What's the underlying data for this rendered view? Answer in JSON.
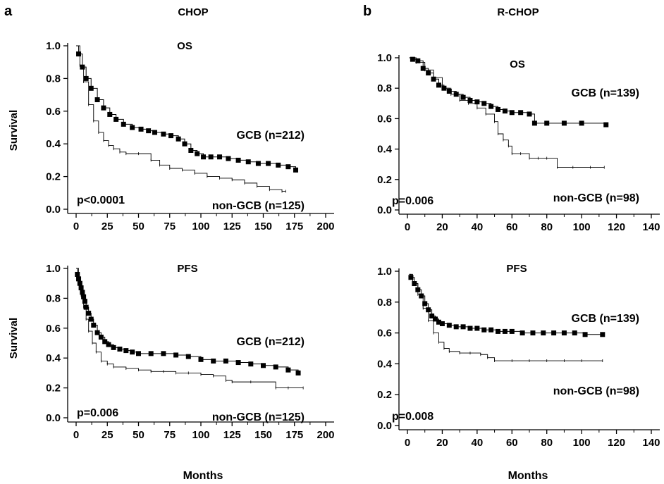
{
  "panels": [
    {
      "letter": "a",
      "title": "CHOP"
    },
    {
      "letter": "b",
      "title": "R-CHOP"
    }
  ],
  "shared_ylabel": "Survival",
  "shared_xlabel": "Months",
  "chart_data": [
    {
      "type": "line",
      "subtitle": "OS",
      "pvalue": "p<0.0001",
      "xlim": [
        0,
        200
      ],
      "ylim": [
        0,
        1
      ],
      "xticks": [
        "0",
        "25",
        "50",
        "75",
        "100",
        "125",
        "150",
        "175",
        "200"
      ],
      "yticks": [
        "0.0",
        "0.2",
        "0.4",
        "0.6",
        "0.8",
        "1.0"
      ],
      "series": [
        {
          "name": "GCB (n=212)",
          "marker": "square",
          "x": [
            0,
            2,
            5,
            8,
            12,
            17,
            22,
            27,
            32,
            38,
            45,
            52,
            58,
            63,
            70,
            76,
            82,
            87,
            92,
            97,
            102,
            108,
            115,
            122,
            130,
            138,
            146,
            154,
            162,
            170,
            176
          ],
          "y": [
            1.0,
            0.95,
            0.87,
            0.8,
            0.74,
            0.67,
            0.62,
            0.58,
            0.55,
            0.52,
            0.5,
            0.49,
            0.48,
            0.47,
            0.46,
            0.45,
            0.43,
            0.4,
            0.36,
            0.34,
            0.32,
            0.32,
            0.32,
            0.31,
            0.3,
            0.29,
            0.28,
            0.28,
            0.27,
            0.26,
            0.24
          ]
        },
        {
          "name": "non-GCB (n=125)",
          "marker": "none",
          "x": [
            0,
            3,
            6,
            10,
            14,
            18,
            22,
            26,
            30,
            35,
            40,
            50,
            60,
            67,
            75,
            85,
            95,
            105,
            115,
            125,
            135,
            145,
            155,
            165,
            168
          ],
          "y": [
            1.0,
            0.88,
            0.78,
            0.64,
            0.54,
            0.47,
            0.42,
            0.39,
            0.37,
            0.35,
            0.34,
            0.34,
            0.3,
            0.27,
            0.25,
            0.24,
            0.22,
            0.2,
            0.19,
            0.18,
            0.16,
            0.14,
            0.12,
            0.11,
            0.11
          ]
        }
      ]
    },
    {
      "type": "line",
      "subtitle": "OS",
      "pvalue": "p=0.006",
      "xlim": [
        0,
        140
      ],
      "ylim": [
        0,
        1
      ],
      "xticks": [
        "0",
        "20",
        "40",
        "60",
        "80",
        "100",
        "120",
        "140"
      ],
      "yticks": [
        "0.0",
        "0.2",
        "0.4",
        "0.6",
        "0.8",
        "1.0"
      ],
      "series": [
        {
          "name": "GCB (n=139)",
          "marker": "square",
          "x": [
            1,
            3,
            6,
            9,
            12,
            15,
            18,
            21,
            24,
            28,
            32,
            36,
            40,
            44,
            48,
            52,
            56,
            60,
            65,
            70,
            73,
            80,
            90,
            100,
            114
          ],
          "y": [
            1.0,
            0.99,
            0.98,
            0.93,
            0.9,
            0.86,
            0.82,
            0.8,
            0.78,
            0.76,
            0.74,
            0.72,
            0.71,
            0.7,
            0.68,
            0.66,
            0.65,
            0.64,
            0.64,
            0.63,
            0.57,
            0.57,
            0.57,
            0.57,
            0.56
          ]
        },
        {
          "name": "non-GCB (n=98)",
          "marker": "none",
          "x": [
            1,
            5,
            10,
            15,
            20,
            25,
            30,
            35,
            40,
            45,
            50,
            52,
            55,
            58,
            60,
            65,
            70,
            75,
            80,
            86,
            95,
            105,
            113
          ],
          "y": [
            1.0,
            0.97,
            0.92,
            0.87,
            0.8,
            0.76,
            0.72,
            0.7,
            0.67,
            0.63,
            0.58,
            0.5,
            0.46,
            0.42,
            0.37,
            0.37,
            0.34,
            0.34,
            0.34,
            0.28,
            0.28,
            0.28,
            0.28
          ]
        }
      ]
    },
    {
      "type": "line",
      "subtitle": "PFS",
      "pvalue": "p=0.006",
      "xlim": [
        0,
        200
      ],
      "ylim": [
        0,
        1
      ],
      "xticks": [
        "0",
        "25",
        "50",
        "75",
        "100",
        "125",
        "150",
        "175",
        "200"
      ],
      "yticks": [
        "0.0",
        "0.2",
        "0.4",
        "0.6",
        "0.8",
        "1.0"
      ],
      "series": [
        {
          "name": "GCB (n=212)",
          "marker": "square",
          "x": [
            0,
            1,
            2,
            3,
            4,
            5,
            6,
            7,
            8,
            10,
            12,
            14,
            17,
            20,
            23,
            26,
            30,
            35,
            40,
            45,
            50,
            60,
            70,
            80,
            90,
            100,
            110,
            120,
            130,
            140,
            150,
            160,
            170,
            178
          ],
          "y": [
            1.0,
            0.96,
            0.93,
            0.9,
            0.87,
            0.84,
            0.81,
            0.78,
            0.74,
            0.7,
            0.66,
            0.62,
            0.57,
            0.54,
            0.51,
            0.49,
            0.47,
            0.46,
            0.45,
            0.44,
            0.43,
            0.43,
            0.43,
            0.42,
            0.41,
            0.39,
            0.38,
            0.38,
            0.37,
            0.36,
            0.35,
            0.34,
            0.32,
            0.3
          ]
        },
        {
          "name": "non-GCB (n=125)",
          "marker": "none",
          "x": [
            0,
            2,
            4,
            6,
            8,
            10,
            13,
            16,
            20,
            25,
            30,
            40,
            50,
            60,
            70,
            80,
            90,
            100,
            110,
            120,
            125,
            140,
            160,
            170,
            182
          ],
          "y": [
            1.0,
            0.9,
            0.82,
            0.74,
            0.66,
            0.58,
            0.5,
            0.44,
            0.38,
            0.36,
            0.34,
            0.33,
            0.32,
            0.31,
            0.31,
            0.3,
            0.3,
            0.29,
            0.28,
            0.25,
            0.24,
            0.24,
            0.2,
            0.2,
            0.2
          ]
        }
      ]
    },
    {
      "type": "line",
      "subtitle": "PFS",
      "pvalue": "p=0.008",
      "xlim": [
        0,
        140
      ],
      "ylim": [
        0,
        1
      ],
      "xticks": [
        "0",
        "20",
        "40",
        "60",
        "80",
        "100",
        "120",
        "140"
      ],
      "yticks": [
        "0.0",
        "0.2",
        "0.4",
        "0.6",
        "0.8",
        "1.0"
      ],
      "series": [
        {
          "name": "GCB (n=139)",
          "marker": "square",
          "x": [
            1,
            2,
            4,
            6,
            8,
            10,
            12,
            14,
            16,
            18,
            20,
            24,
            28,
            32,
            36,
            40,
            44,
            48,
            52,
            56,
            60,
            66,
            72,
            78,
            84,
            90,
            96,
            102,
            112
          ],
          "y": [
            0.98,
            0.96,
            0.92,
            0.88,
            0.84,
            0.79,
            0.75,
            0.71,
            0.69,
            0.67,
            0.66,
            0.65,
            0.64,
            0.64,
            0.63,
            0.63,
            0.62,
            0.62,
            0.61,
            0.61,
            0.61,
            0.6,
            0.6,
            0.6,
            0.6,
            0.6,
            0.6,
            0.59,
            0.59
          ]
        },
        {
          "name": "non-GCB (n=98)",
          "marker": "none",
          "x": [
            1,
            3,
            6,
            9,
            12,
            15,
            18,
            21,
            24,
            30,
            36,
            42,
            46,
            50,
            60,
            70,
            80,
            90,
            100,
            112
          ],
          "y": [
            0.98,
            0.92,
            0.85,
            0.76,
            0.68,
            0.6,
            0.54,
            0.5,
            0.48,
            0.47,
            0.47,
            0.46,
            0.44,
            0.42,
            0.42,
            0.42,
            0.42,
            0.42,
            0.42,
            0.42
          ]
        }
      ]
    }
  ]
}
